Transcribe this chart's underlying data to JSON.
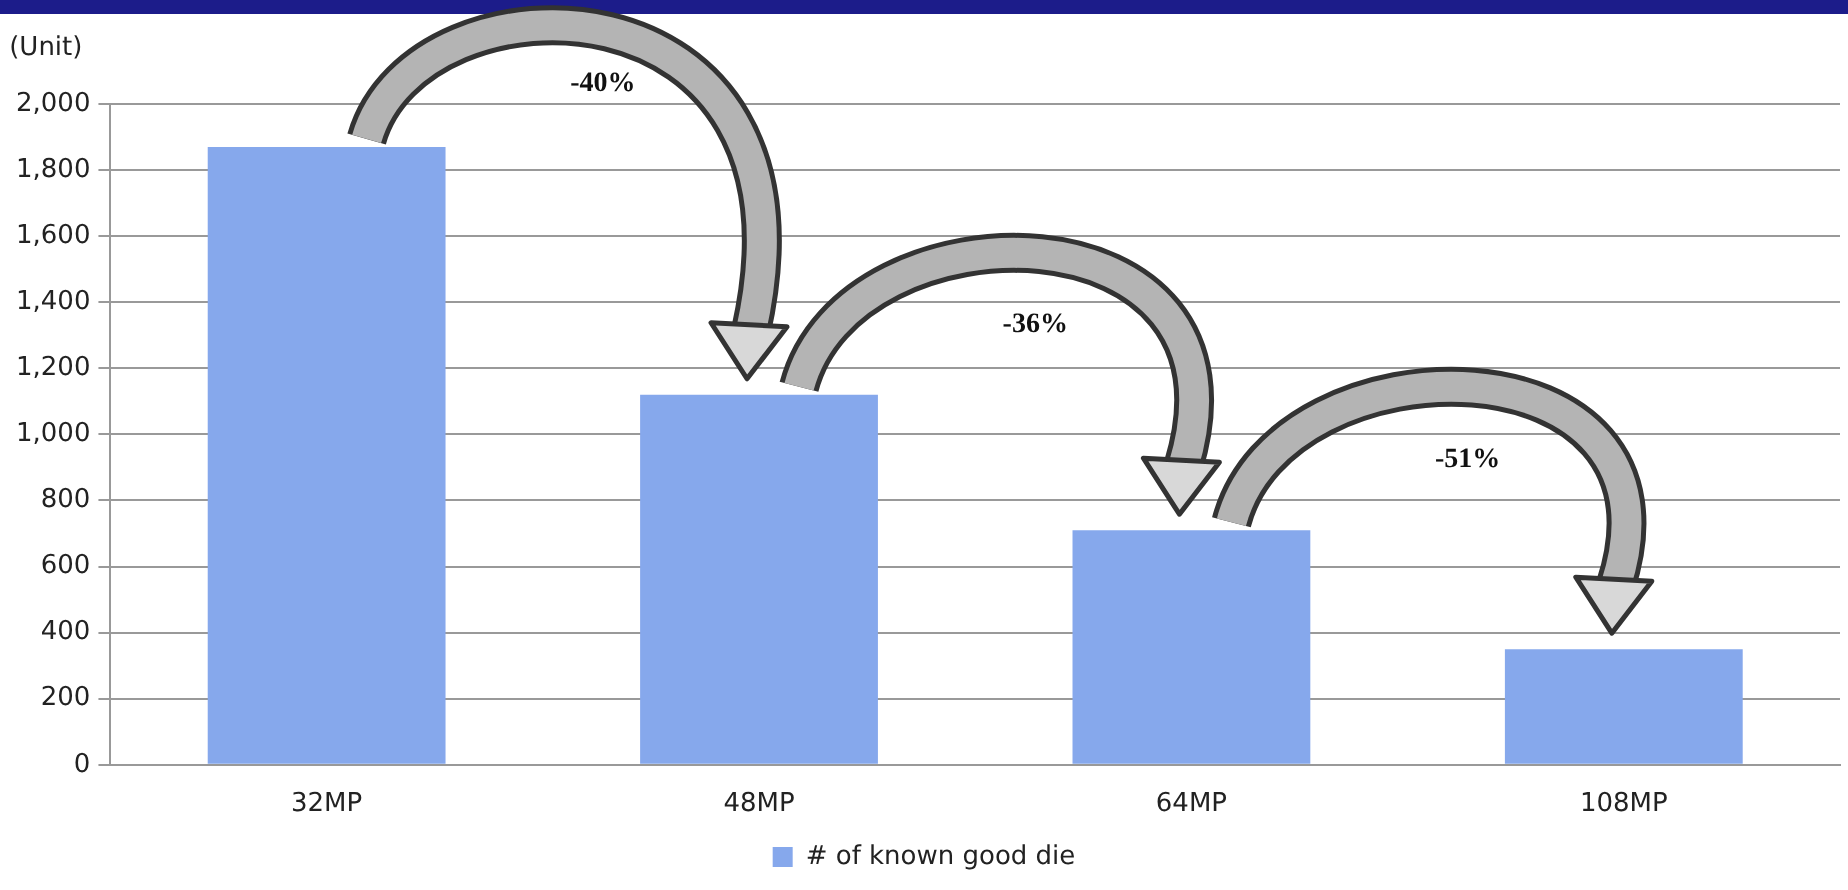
{
  "chart_data": {
    "type": "bar",
    "ylabel": "(Unit)",
    "categories": [
      "32MP",
      "48MP",
      "64MP",
      "108MP"
    ],
    "series": [
      {
        "name": "# of known good die",
        "color": "#86a8ec",
        "values": [
          1870,
          1120,
          710,
          350
        ]
      }
    ],
    "ylim": [
      0,
      2000
    ],
    "yticks": [
      0,
      200,
      400,
      600,
      800,
      {
        "value": 1000,
        "label": "1,000"
      },
      {
        "value": 1200,
        "label": "1,200"
      },
      {
        "value": 1400,
        "label": "1,400"
      },
      {
        "value": 1600,
        "label": "1,600"
      },
      {
        "value": 1800,
        "label": "1,800"
      },
      {
        "value": 2000,
        "label": "2,000"
      }
    ],
    "grid": "y",
    "legend": "bottom",
    "annotations": [
      "-40%",
      "-36%",
      "-51%"
    ]
  }
}
